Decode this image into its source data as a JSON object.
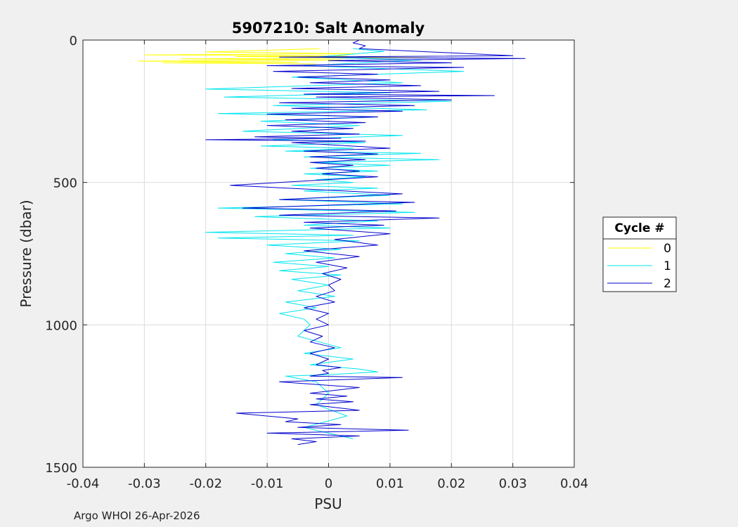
{
  "footer": "Argo WHOI 26-Apr-2026",
  "chart_data": {
    "type": "line",
    "title": "5907210: Salt Anomaly",
    "xlabel": "PSU",
    "ylabel": "Pressure (dbar)",
    "xlim": [
      -0.04,
      0.04
    ],
    "ylim": [
      0,
      1500
    ],
    "y_reversed": true,
    "grid": true,
    "xticks": [
      -0.04,
      -0.03,
      -0.02,
      -0.01,
      0,
      0.01,
      0.02,
      0.03,
      0.04
    ],
    "xtick_labels": [
      "-0.04",
      "-0.03",
      "-0.02",
      "-0.01",
      "0",
      "0.01",
      "0.02",
      "0.03",
      "0.04"
    ],
    "yticks": [
      0,
      500,
      1000,
      1500
    ],
    "ytick_labels": [
      "0",
      "500",
      "1000",
      "1500"
    ],
    "legend": {
      "title": "Cycle #",
      "placement": "east-outside"
    },
    "series": [
      {
        "name": "0",
        "color": "#ffff00",
        "x": [
          -0.0015,
          -0.02,
          0.005,
          -0.03,
          0.003,
          -0.015,
          0.016,
          -0.024,
          0.002,
          -0.031,
          -0.005,
          -0.027,
          -0.002
        ],
        "y": [
          30,
          42,
          48,
          52,
          56,
          58,
          62,
          66,
          70,
          74,
          78,
          80,
          84
        ]
      },
      {
        "name": "1",
        "color": "#00e5ee",
        "x": [
          0.004,
          0.009,
          -0.002,
          0.015,
          -0.004,
          0.022,
          -0.006,
          0.012,
          -0.02,
          0.01,
          -0.017,
          0.02,
          -0.009,
          0.016,
          -0.018,
          0.008,
          -0.011,
          0.005,
          -0.014,
          0.012,
          -0.009,
          0.006,
          -0.011,
          0.004,
          -0.007,
          0.015,
          -0.004,
          0.018,
          -0.002,
          0.01,
          -0.003,
          0.008,
          -0.004,
          0.006,
          -0.002,
          0.004,
          -0.006,
          0.008,
          -0.004,
          0.01,
          -0.008,
          0.012,
          -0.018,
          0.014,
          -0.012,
          0.008,
          -0.004,
          0.01,
          -0.02,
          0.004,
          -0.018,
          0.005,
          -0.01,
          0.002,
          -0.007,
          0.001,
          -0.009,
          0.0,
          -0.008,
          0.002,
          -0.006,
          0.0,
          -0.005,
          0.001,
          -0.007,
          -0.002,
          -0.008,
          -0.004,
          -0.003,
          -0.005,
          0.002,
          -0.004,
          0.004,
          -0.003,
          0.005,
          0.008,
          0.0,
          -0.007,
          -0.002,
          0.0,
          -0.002,
          0.003,
          -0.004,
          0.004
        ],
        "y": [
          30,
          40,
          60,
          70,
          90,
          110,
          130,
          150,
          172,
          185,
          200,
          215,
          230,
          245,
          258,
          270,
          285,
          300,
          320,
          335,
          350,
          360,
          372,
          380,
          390,
          398,
          410,
          420,
          430,
          440,
          450,
          460,
          470,
          480,
          490,
          500,
          510,
          520,
          530,
          545,
          560,
          575,
          590,
          605,
          620,
          635,
          650,
          660,
          675,
          685,
          695,
          705,
          720,
          735,
          750,
          765,
          780,
          795,
          810,
          825,
          840,
          860,
          880,
          900,
          920,
          940,
          960,
          980,
          1000,
          1040,
          1080,
          1100,
          1120,
          1140,
          1155,
          1165,
          1175,
          1180,
          1200,
          1240,
          1280,
          1320,
          1360,
          1400
        ]
      },
      {
        "name": "2",
        "color": "#0000cd",
        "x": [
          0.005,
          0.004,
          0.006,
          0.005,
          0.03,
          -0.008,
          0.032,
          0.0,
          0.02,
          -0.01,
          0.022,
          -0.009,
          0.008,
          -0.005,
          0.01,
          -0.003,
          0.015,
          -0.006,
          0.018,
          -0.004,
          0.027,
          -0.002,
          0.02,
          -0.008,
          0.014,
          -0.006,
          0.012,
          -0.01,
          0.008,
          -0.007,
          0.006,
          -0.01,
          0.004,
          -0.006,
          0.005,
          -0.012,
          0.002,
          -0.02,
          0.006,
          -0.006,
          0.01,
          -0.004,
          0.008,
          -0.003,
          0.006,
          -0.003,
          0.004,
          -0.002,
          0.005,
          -0.001,
          0.008,
          -0.016,
          0.012,
          -0.008,
          0.014,
          -0.014,
          0.011,
          -0.008,
          0.018,
          -0.004,
          0.009,
          -0.003,
          0.01,
          0.001,
          0.008,
          -0.004,
          0.005,
          -0.002,
          0.003,
          -0.001,
          0.002,
          0.0,
          0.001,
          -0.002,
          0.001,
          -0.004,
          0.0,
          -0.002,
          0.0,
          -0.004,
          -0.001,
          -0.003,
          0.001,
          -0.003,
          0.0,
          -0.002,
          0.002,
          -0.001,
          0.0,
          -0.003,
          0.012,
          -0.008,
          0.005,
          -0.003,
          0.003,
          -0.002,
          0.004,
          -0.003,
          0.005,
          -0.015,
          -0.005,
          -0.007,
          0.002,
          -0.005,
          0.013,
          -0.01,
          0.005,
          -0.006,
          -0.002,
          -0.005
        ],
        "y": [
          0,
          10,
          20,
          30,
          55,
          60,
          65,
          72,
          80,
          90,
          96,
          110,
          120,
          130,
          140,
          150,
          160,
          170,
          180,
          190,
          195,
          200,
          210,
          220,
          230,
          240,
          250,
          260,
          270,
          280,
          290,
          300,
          310,
          320,
          330,
          340,
          345,
          350,
          355,
          360,
          380,
          390,
          400,
          410,
          420,
          430,
          440,
          450,
          460,
          470,
          480,
          510,
          540,
          560,
          570,
          590,
          600,
          615,
          625,
          640,
          650,
          660,
          680,
          700,
          720,
          740,
          760,
          780,
          800,
          820,
          840,
          860,
          880,
          900,
          920,
          940,
          960,
          980,
          1000,
          1020,
          1040,
          1060,
          1080,
          1100,
          1120,
          1140,
          1150,
          1160,
          1170,
          1180,
          1185,
          1200,
          1220,
          1240,
          1250,
          1260,
          1270,
          1280,
          1300,
          1310,
          1330,
          1340,
          1350,
          1360,
          1370,
          1380,
          1390,
          1400,
          1410,
          1420
        ]
      }
    ]
  }
}
